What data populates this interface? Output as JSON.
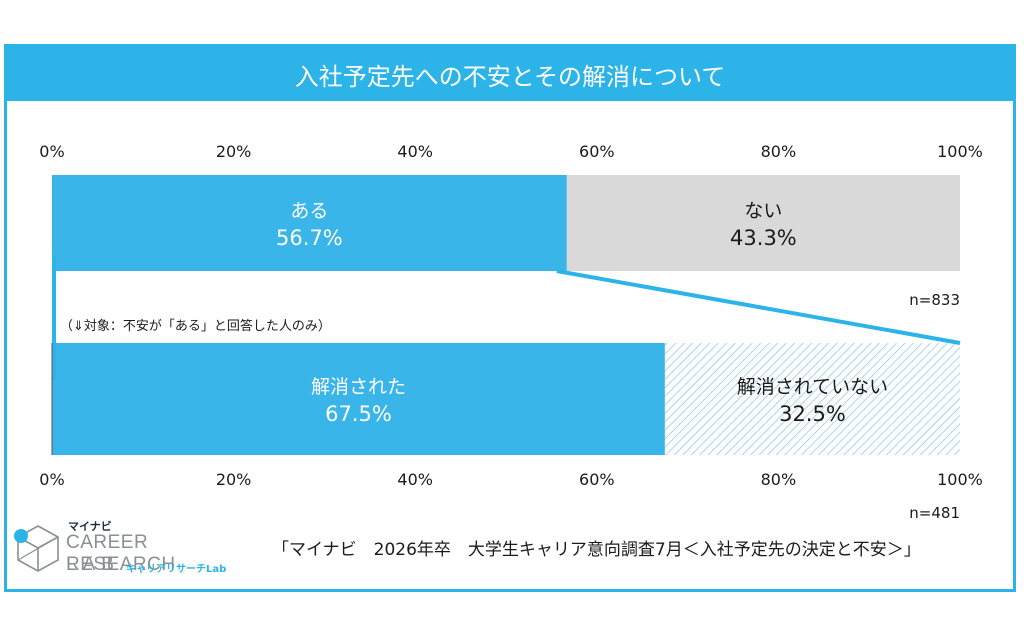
{
  "title": "入社予定先への不安とその解消について",
  "chart_data": [
    {
      "type": "bar",
      "orientation": "horizontal-stacked-100",
      "segments": [
        {
          "label": "ある",
          "value": 56.7,
          "value_label": "56.7%",
          "color": "#3ab5e9",
          "text_color": "#ffffff"
        },
        {
          "label": "ない",
          "value": 43.3,
          "value_label": "43.3%",
          "color": "#d9d9d9",
          "text_color": "#1b1b1b"
        }
      ],
      "n_label": "n=833",
      "axis_ticks": [
        "0%",
        "20%",
        "40%",
        "60%",
        "80%",
        "100%"
      ],
      "xlim": [
        0,
        100
      ]
    },
    {
      "type": "bar",
      "orientation": "horizontal-stacked-100",
      "note": "（⇓対象：不安が「ある」と回答した人のみ）",
      "segments": [
        {
          "label": "解消された",
          "value": 67.5,
          "value_label": "67.5%",
          "color": "#3ab5e9",
          "text_color": "#ffffff"
        },
        {
          "label": "解消されていない",
          "value": 32.5,
          "value_label": "32.5%",
          "color": "hatch",
          "text_color": "#1b1b1b"
        }
      ],
      "n_label": "n=481",
      "axis_ticks": [
        "0%",
        "20%",
        "40%",
        "60%",
        "80%",
        "100%"
      ],
      "xlim": [
        0,
        100
      ]
    }
  ],
  "logo": {
    "brand": "マイナビ",
    "line1": "CAREER RESEARCH",
    "line2": "LAB",
    "sub": "キャリアリサーチLab"
  },
  "source": "「マイナビ　2026年卒　大学生キャリア意向調査7月＜入社予定先の決定と不安＞」",
  "colors": {
    "accent": "#2cb3e8",
    "bar_blue": "#3ab5e9",
    "bar_gray": "#d9d9d9",
    "hatch": "#a9d6ea"
  }
}
